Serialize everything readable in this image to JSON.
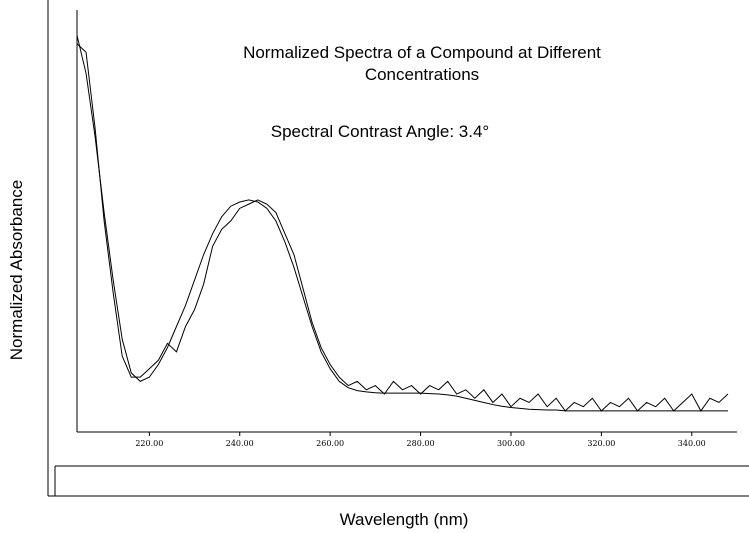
{
  "chart_data": {
    "type": "line",
    "title": "Normalized Spectra of a Compound at Different Concentrations",
    "annotation": "Spectral Contrast Angle: 3.4°",
    "xlabel": "Wavelength (nm)",
    "ylabel": "Normalized Absorbance",
    "xlim": [
      204,
      350
    ],
    "ylim": [
      0,
      1
    ],
    "xticks": [
      {
        "value": 220,
        "label": "220.00"
      },
      {
        "value": 240,
        "label": "240.00"
      },
      {
        "value": 260,
        "label": "260.00"
      },
      {
        "value": 280,
        "label": "280.00"
      },
      {
        "value": 300,
        "label": "300.00"
      },
      {
        "value": 320,
        "label": "320.00"
      },
      {
        "value": 340,
        "label": "340.00"
      }
    ],
    "x": [
      204,
      206,
      208,
      210,
      212,
      214,
      216,
      218,
      220,
      222,
      224,
      226,
      228,
      230,
      232,
      234,
      236,
      238,
      240,
      242,
      244,
      246,
      248,
      250,
      252,
      254,
      256,
      258,
      260,
      262,
      264,
      266,
      268,
      270,
      272,
      274,
      276,
      278,
      280,
      282,
      284,
      286,
      288,
      290,
      292,
      294,
      296,
      298,
      300,
      302,
      304,
      306,
      308,
      310,
      312,
      314,
      316,
      318,
      320,
      322,
      324,
      326,
      328,
      330,
      332,
      334,
      336,
      338,
      340,
      342,
      344,
      346,
      348
    ],
    "series": [
      {
        "color": "#000000",
        "values": [
          0.94,
          0.85,
          0.7,
          0.52,
          0.36,
          0.22,
          0.14,
          0.12,
          0.13,
          0.16,
          0.2,
          0.25,
          0.3,
          0.36,
          0.42,
          0.47,
          0.51,
          0.535,
          0.545,
          0.55,
          0.545,
          0.53,
          0.5,
          0.45,
          0.39,
          0.32,
          0.25,
          0.19,
          0.15,
          0.12,
          0.105,
          0.098,
          0.095,
          0.093,
          0.092,
          0.092,
          0.092,
          0.092,
          0.092,
          0.091,
          0.09,
          0.088,
          0.085,
          0.08,
          0.075,
          0.07,
          0.065,
          0.061,
          0.058,
          0.056,
          0.054,
          0.053,
          0.052,
          0.052,
          0.05,
          0.05,
          0.05,
          0.05,
          0.05,
          0.05,
          0.05,
          0.05,
          0.05,
          0.05,
          0.05,
          0.05,
          0.05,
          0.05,
          0.05,
          0.05,
          0.05,
          0.05,
          0.05
        ]
      },
      {
        "color": "#000000",
        "values": [
          0.92,
          0.9,
          0.72,
          0.5,
          0.33,
          0.18,
          0.13,
          0.13,
          0.15,
          0.17,
          0.21,
          0.19,
          0.25,
          0.29,
          0.35,
          0.44,
          0.48,
          0.5,
          0.53,
          0.54,
          0.55,
          0.54,
          0.52,
          0.47,
          0.42,
          0.34,
          0.26,
          0.2,
          0.16,
          0.13,
          0.11,
          0.12,
          0.1,
          0.11,
          0.09,
          0.12,
          0.1,
          0.11,
          0.09,
          0.11,
          0.1,
          0.12,
          0.09,
          0.1,
          0.08,
          0.1,
          0.07,
          0.09,
          0.06,
          0.08,
          0.07,
          0.09,
          0.06,
          0.08,
          0.05,
          0.07,
          0.06,
          0.08,
          0.05,
          0.07,
          0.06,
          0.08,
          0.05,
          0.07,
          0.06,
          0.08,
          0.05,
          0.07,
          0.09,
          0.05,
          0.08,
          0.07,
          0.09
        ]
      }
    ]
  }
}
